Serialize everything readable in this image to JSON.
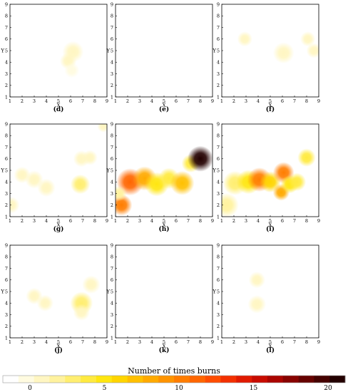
{
  "chart_data": {
    "type": "heatmap",
    "xlabel": "X",
    "ylabel": "Y",
    "xlim": [
      1,
      9
    ],
    "ylim": [
      1,
      9
    ],
    "x_ticks": [
      "1",
      "2",
      "3",
      "4",
      "5",
      "6",
      "7",
      "8",
      "9"
    ],
    "y_ticks": [
      "1",
      "2",
      "3",
      "4",
      "5",
      "6",
      "7",
      "8",
      "9"
    ],
    "y_label_value": "5",
    "colorbar": {
      "title": "Number of times burns",
      "min": 0,
      "max": 20,
      "ticks": [
        0,
        5,
        10,
        15,
        20
      ],
      "colors": [
        "#ffffff",
        "#fffbe0",
        "#fff6c2",
        "#fff29e",
        "#ffee70",
        "#ffea40",
        "#ffe610",
        "#ffd500",
        "#ffc000",
        "#ffaa00",
        "#ff9400",
        "#ff7d00",
        "#ff6600",
        "#ff4d00",
        "#f33000",
        "#e01a00",
        "#c80c00",
        "#aa0500",
        "#880300",
        "#660200",
        "#450100",
        "#230000"
      ]
    },
    "panels": [
      {
        "label": "(d)",
        "blobs": [
          {
            "x": 6.2,
            "y": 4.9,
            "v": 2,
            "r": 0.7
          },
          {
            "x": 5.8,
            "y": 4.1,
            "v": 1.5,
            "r": 0.55
          },
          {
            "x": 6.1,
            "y": 3.3,
            "v": 1,
            "r": 0.5
          }
        ]
      },
      {
        "label": "(e)",
        "blobs": []
      },
      {
        "label": "(f)",
        "blobs": [
          {
            "x": 2.9,
            "y": 6.0,
            "v": 1.5,
            "r": 0.5
          },
          {
            "x": 6.1,
            "y": 4.8,
            "v": 2,
            "r": 0.7
          },
          {
            "x": 8.1,
            "y": 6.0,
            "v": 1.5,
            "r": 0.5
          },
          {
            "x": 8.6,
            "y": 5.0,
            "v": 1.5,
            "r": 0.5
          }
        ]
      },
      {
        "label": "(g)",
        "blobs": [
          {
            "x": 1.1,
            "y": 2.0,
            "v": 1.5,
            "r": 0.55
          },
          {
            "x": 2.0,
            "y": 4.6,
            "v": 1.5,
            "r": 0.55
          },
          {
            "x": 3.0,
            "y": 4.2,
            "v": 1.5,
            "r": 0.6
          },
          {
            "x": 4.0,
            "y": 3.5,
            "v": 1.5,
            "r": 0.6
          },
          {
            "x": 6.9,
            "y": 6.0,
            "v": 2,
            "r": 0.55
          },
          {
            "x": 7.6,
            "y": 6.1,
            "v": 1.5,
            "r": 0.5
          },
          {
            "x": 6.8,
            "y": 3.8,
            "v": 4,
            "r": 0.65
          },
          {
            "x": 8.7,
            "y": 8.8,
            "v": 1.5,
            "r": 0.4
          }
        ]
      },
      {
        "label": "(h)",
        "blobs": [
          {
            "x": 1.5,
            "y": 2.0,
            "v": 10,
            "r": 0.7
          },
          {
            "x": 2.2,
            "y": 4.0,
            "v": 11,
            "r": 0.9
          },
          {
            "x": 3.4,
            "y": 4.3,
            "v": 9,
            "r": 0.8
          },
          {
            "x": 4.4,
            "y": 3.8,
            "v": 6,
            "r": 0.8
          },
          {
            "x": 5.4,
            "y": 4.3,
            "v": 5,
            "r": 0.7
          },
          {
            "x": 6.5,
            "y": 3.9,
            "v": 8,
            "r": 0.8
          },
          {
            "x": 7.2,
            "y": 5.6,
            "v": 5,
            "r": 0.6
          },
          {
            "x": 8.0,
            "y": 6.0,
            "v": 20,
            "r": 0.85
          },
          {
            "x": 1.3,
            "y": 3.0,
            "v": 3,
            "r": 0.5
          }
        ]
      },
      {
        "label": "(i)",
        "blobs": [
          {
            "x": 1.4,
            "y": 2.0,
            "v": 3,
            "r": 0.8
          },
          {
            "x": 2.1,
            "y": 3.9,
            "v": 4,
            "r": 0.8
          },
          {
            "x": 3.2,
            "y": 4.0,
            "v": 6,
            "r": 0.8
          },
          {
            "x": 4.1,
            "y": 4.2,
            "v": 10,
            "r": 0.8
          },
          {
            "x": 5.0,
            "y": 4.0,
            "v": 7,
            "r": 0.7
          },
          {
            "x": 6.1,
            "y": 4.8,
            "v": 10,
            "r": 0.7
          },
          {
            "x": 5.9,
            "y": 3.1,
            "v": 9,
            "r": 0.55
          },
          {
            "x": 6.6,
            "y": 3.8,
            "v": 6,
            "r": 0.6
          },
          {
            "x": 7.2,
            "y": 4.0,
            "v": 5,
            "r": 0.6
          },
          {
            "x": 8.0,
            "y": 6.1,
            "v": 5,
            "r": 0.6
          }
        ]
      },
      {
        "label": "(j)",
        "blobs": [
          {
            "x": 3.0,
            "y": 4.6,
            "v": 1.5,
            "r": 0.55
          },
          {
            "x": 3.9,
            "y": 4.0,
            "v": 1.5,
            "r": 0.55
          },
          {
            "x": 6.9,
            "y": 4.0,
            "v": 4,
            "r": 0.75
          },
          {
            "x": 7.7,
            "y": 5.6,
            "v": 2,
            "r": 0.6
          },
          {
            "x": 6.9,
            "y": 3.2,
            "v": 1.5,
            "r": 0.55
          }
        ]
      },
      {
        "label": "(k)",
        "blobs": []
      },
      {
        "label": "(l)",
        "blobs": [
          {
            "x": 3.9,
            "y": 6.0,
            "v": 2,
            "r": 0.55
          },
          {
            "x": 3.9,
            "y": 3.9,
            "v": 2,
            "r": 0.6
          }
        ]
      }
    ]
  }
}
